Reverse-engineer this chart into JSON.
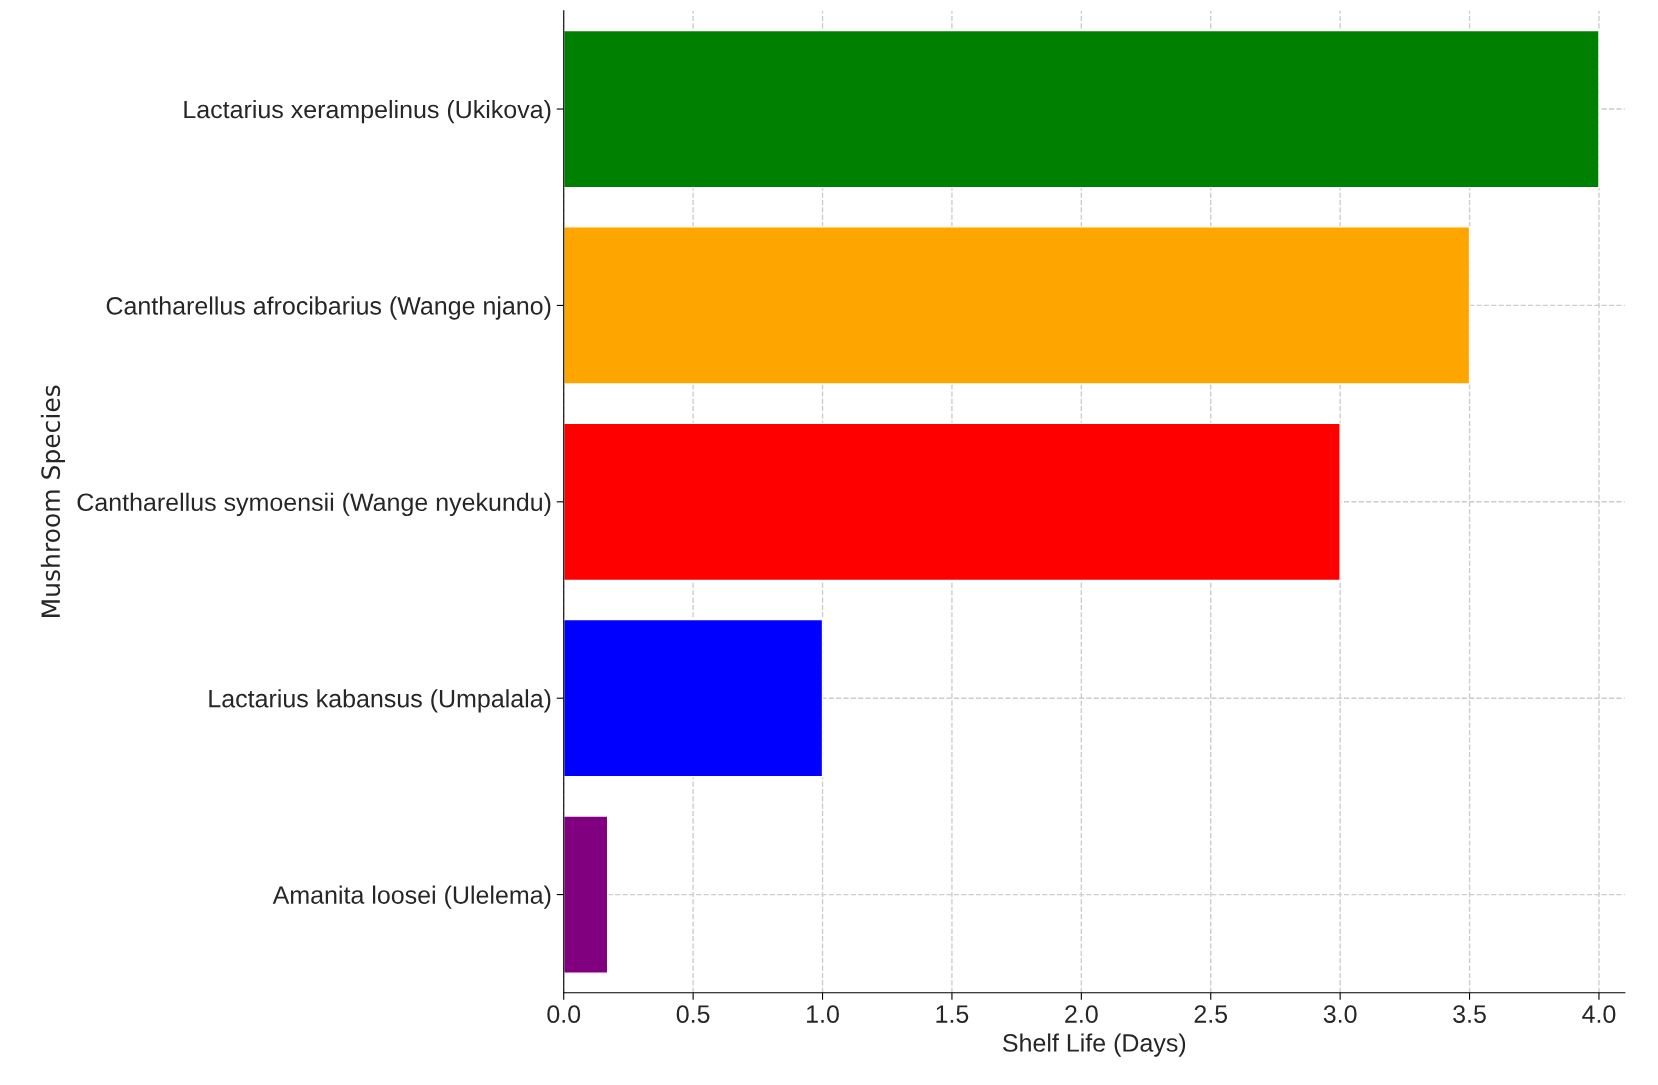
{
  "chart_data": {
    "type": "bar",
    "orientation": "horizontal",
    "xlabel": "Shelf Life (Days)",
    "ylabel": "Mushroom Species",
    "categories": [
      "Lactarius xerampelinus (Ukikova)",
      "Cantharellus afrocibarius (Wange njano)",
      "Cantharellus symoensii (Wange nyekundu)",
      "Lactarius kabansus (Umpalala)",
      "Amanita loosei (Ulelema)"
    ],
    "values": [
      4.0,
      3.5,
      3.0,
      1.0,
      0.17
    ],
    "colors": [
      "#008000",
      "#ffa500",
      "#ff0000",
      "#0000ff",
      "#800080"
    ],
    "xlim": [
      0,
      4.1
    ],
    "xticks": [
      {
        "value": 0,
        "label": "0.0"
      },
      {
        "value": 0.5,
        "label": "0.5"
      },
      {
        "value": 1,
        "label": "1.0"
      },
      {
        "value": 1.5,
        "label": "1.5"
      },
      {
        "value": 2,
        "label": "2.0"
      },
      {
        "value": 2.5,
        "label": "2.5"
      },
      {
        "value": 3,
        "label": "3.0"
      },
      {
        "value": 3.5,
        "label": "3.5"
      },
      {
        "value": 4,
        "label": "4.0"
      }
    ],
    "grid": true
  }
}
